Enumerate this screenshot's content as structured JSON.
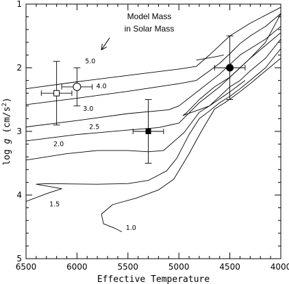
{
  "chart_data": {
    "type": "line",
    "title": "",
    "xlabel": "Effective Temperature",
    "ylabel_prefix": "log ",
    "ylabel_var": "g",
    "ylabel_units": " (cm/s",
    "ylabel_sup": "2",
    "ylabel_close": ")",
    "xlim": [
      6500,
      4000
    ],
    "ylim": [
      5,
      1
    ],
    "x_ticks": [
      6500,
      6000,
      5500,
      5000,
      4500,
      4000
    ],
    "x_tick_labels": [
      "6500",
      "6000",
      "5500",
      "5000",
      "4500",
      "4000"
    ],
    "y_ticks": [
      1,
      2,
      3,
      4,
      5
    ],
    "y_tick_labels": [
      "1",
      "2",
      "3",
      "4",
      "5"
    ],
    "annotation": {
      "line1": "Model Mass",
      "line2": "in Solar Mass",
      "arrow_from": [
        5680,
        1.53
      ],
      "arrow_to": [
        5760,
        1.72
      ]
    },
    "series": [
      {
        "name": "5.0",
        "label_at": [
          5870,
          1.93
        ],
        "points": [
          [
            6500,
            2.33
          ],
          [
            6000,
            2.22
          ],
          [
            5500,
            2.12
          ],
          [
            5000,
            2.02
          ],
          [
            4830,
            1.98
          ],
          [
            4700,
            1.8
          ],
          [
            4600,
            1.65
          ],
          [
            4500,
            1.5
          ],
          [
            4300,
            1.3
          ],
          [
            4000,
            1.05
          ]
        ]
      },
      {
        "name": "4.0",
        "label_at": [
          5760,
          2.32
        ],
        "points": [
          [
            6500,
            2.58
          ],
          [
            6000,
            2.48
          ],
          [
            5500,
            2.37
          ],
          [
            5000,
            2.25
          ],
          [
            4830,
            2.2
          ],
          [
            4700,
            2.05
          ],
          [
            4600,
            1.93
          ],
          [
            4500,
            1.78
          ],
          [
            4400,
            1.62
          ],
          [
            4300,
            1.5
          ],
          [
            4150,
            1.35
          ],
          [
            4000,
            1.15
          ],
          [
            4150,
            1.6
          ],
          [
            4300,
            1.85
          ],
          [
            4500,
            2.15
          ],
          [
            4650,
            2.3
          ],
          [
            4800,
            2.5
          ],
          [
            4920,
            2.7
          ],
          [
            4960,
            2.75
          ],
          [
            4700,
            2.6
          ],
          [
            4500,
            2.38
          ],
          [
            4350,
            2.2
          ]
        ]
      },
      {
        "name": "3.0",
        "label_at": [
          5890,
          2.68
        ],
        "points": [
          [
            6500,
            2.93
          ],
          [
            6000,
            2.83
          ],
          [
            5500,
            2.72
          ],
          [
            5100,
            2.66
          ],
          [
            5000,
            2.6
          ],
          [
            4800,
            2.35
          ],
          [
            4600,
            2.1
          ],
          [
            4500,
            1.95
          ],
          [
            4400,
            1.8
          ],
          [
            4300,
            1.7
          ],
          [
            4150,
            1.55
          ],
          [
            4000,
            1.35
          ]
        ]
      },
      {
        "name": "2.5",
        "label_at": [
          5830,
          2.96
        ],
        "points": [
          [
            6500,
            3.15
          ],
          [
            6000,
            3.05
          ],
          [
            5500,
            2.98
          ],
          [
            5200,
            2.94
          ],
          [
            5000,
            2.87
          ],
          [
            4800,
            2.55
          ],
          [
            4600,
            2.3
          ],
          [
            4500,
            2.15
          ],
          [
            4400,
            2.0
          ],
          [
            4300,
            1.85
          ],
          [
            4150,
            1.65
          ],
          [
            4000,
            1.45
          ]
        ]
      },
      {
        "name": "2.0",
        "label_at": [
          6180,
          3.23
        ],
        "points": [
          [
            6500,
            3.45
          ],
          [
            6100,
            3.35
          ],
          [
            5800,
            3.3
          ],
          [
            5500,
            3.3
          ],
          [
            5300,
            3.32
          ],
          [
            5150,
            3.3
          ],
          [
            4950,
            3.02
          ],
          [
            4800,
            2.7
          ],
          [
            4700,
            2.6
          ],
          [
            4600,
            2.45
          ],
          [
            4500,
            2.3
          ],
          [
            4400,
            2.2
          ],
          [
            4300,
            2.05
          ],
          [
            4150,
            1.85
          ],
          [
            4000,
            1.55
          ]
        ]
      },
      {
        "name": "1.5",
        "label_at": [
          6220,
          4.18
        ],
        "points": [
          [
            6500,
            4.1
          ],
          [
            6300,
            3.98
          ],
          [
            6150,
            3.9
          ],
          [
            6400,
            3.83
          ],
          [
            6300,
            3.82
          ],
          [
            5800,
            3.83
          ],
          [
            5500,
            3.82
          ],
          [
            5300,
            3.77
          ],
          [
            5120,
            3.62
          ],
          [
            5020,
            3.42
          ],
          [
            4900,
            3.05
          ],
          [
            4800,
            2.8
          ],
          [
            4700,
            2.68
          ],
          [
            4600,
            2.55
          ],
          [
            4500,
            2.45
          ],
          [
            4400,
            2.33
          ],
          [
            4300,
            2.2
          ],
          [
            4150,
            2.0
          ],
          [
            4000,
            1.7
          ]
        ]
      },
      {
        "name": "1.0",
        "label_at": [
          5470,
          4.55
        ],
        "points": [
          [
            5560,
            4.58
          ],
          [
            5630,
            4.52
          ],
          [
            5740,
            4.45
          ],
          [
            5760,
            4.3
          ],
          [
            5650,
            4.15
          ],
          [
            5420,
            4.05
          ],
          [
            5200,
            3.92
          ],
          [
            5050,
            3.75
          ],
          [
            4900,
            3.35
          ],
          [
            4780,
            3.0
          ],
          [
            4650,
            2.65
          ],
          [
            4550,
            2.55
          ],
          [
            4420,
            2.4
          ],
          [
            4300,
            2.25
          ],
          [
            4150,
            2.05
          ],
          [
            4000,
            1.85
          ]
        ]
      }
    ],
    "hook": {
      "points": [
        [
          4830,
          1.88
        ],
        [
          4720,
          1.85
        ],
        [
          4620,
          1.82
        ],
        [
          4560,
          1.8
        ]
      ]
    },
    "observations": [
      {
        "name": "open-square",
        "marker": "open-square",
        "x": 6200,
        "y": 2.4,
        "xerr": 150,
        "yerr": 0.5
      },
      {
        "name": "open-circle",
        "marker": "open-circle",
        "x": 6000,
        "y": 2.3,
        "xerr": 150,
        "yerr": 0.3
      },
      {
        "name": "filled-square",
        "marker": "filled-square",
        "x": 5300,
        "y": 3.0,
        "xerr": 150,
        "yerr": 0.5
      },
      {
        "name": "filled-circle",
        "marker": "filled-circle",
        "x": 4500,
        "y": 2.0,
        "xerr": 150,
        "yerr": 0.5
      }
    ]
  }
}
